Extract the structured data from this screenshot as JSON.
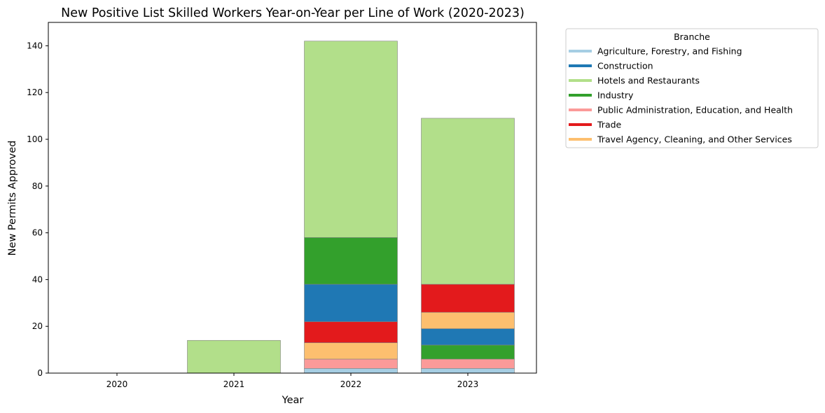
{
  "chart_data": {
    "type": "bar",
    "stacked": true,
    "title": "New Positive List Skilled Workers Year-on-Year per Line of Work (2020-2023)",
    "xlabel": "Year",
    "ylabel": "New Permits Approved",
    "categories": [
      "2020",
      "2021",
      "2022",
      "2023"
    ],
    "ylim": [
      0,
      150
    ],
    "yticks": [
      0,
      20,
      40,
      60,
      80,
      100,
      120,
      140
    ],
    "grid": false,
    "legend": {
      "title": "Branche",
      "placement": "outside-top-right"
    },
    "series": [
      {
        "name": "Agriculture, Forestry, and Fishing",
        "color": "#a6cee3",
        "values": [
          0,
          0,
          2,
          2
        ]
      },
      {
        "name": "Public Administration, Education, and Health",
        "color": "#fb9a99",
        "values": [
          0,
          0,
          4,
          4
        ]
      },
      {
        "name": "Travel Agency, Cleaning, and Other Services",
        "color": "#fdbf6f",
        "values": [
          0,
          0,
          7,
          0
        ]
      },
      {
        "name": "Trade",
        "color": "#e31a1c",
        "values": [
          0,
          0,
          9,
          0
        ]
      },
      {
        "name": "Industry",
        "color": "#33a02c",
        "values": [
          0,
          0,
          0,
          6
        ]
      },
      {
        "name": "Construction",
        "color": "#1f78b4",
        "values": [
          0,
          0,
          16,
          7
        ]
      },
      {
        "name": "Travel Agency, Cleaning, and Other Services",
        "color": "#fdbf6f",
        "values": [
          0,
          0,
          0,
          7
        ]
      },
      {
        "name": "Trade",
        "color": "#e31a1c",
        "values": [
          0,
          0,
          0,
          12
        ]
      },
      {
        "name": "Industry",
        "color": "#33a02c",
        "values": [
          0,
          0,
          20,
          0
        ]
      },
      {
        "name": "Hotels and Restaurants",
        "color": "#b2df8a",
        "values": [
          0,
          14,
          84,
          71
        ]
      }
    ],
    "legend_entries": [
      {
        "name": "Agriculture, Forestry, and Fishing",
        "color": "#a6cee3"
      },
      {
        "name": "Construction",
        "color": "#1f78b4"
      },
      {
        "name": "Hotels and Restaurants",
        "color": "#b2df8a"
      },
      {
        "name": "Industry",
        "color": "#33a02c"
      },
      {
        "name": "Public Administration, Education, and Health",
        "color": "#fb9a99"
      },
      {
        "name": "Trade",
        "color": "#e31a1c"
      },
      {
        "name": "Travel Agency, Cleaning, and Other Services",
        "color": "#fdbf6f"
      }
    ]
  }
}
